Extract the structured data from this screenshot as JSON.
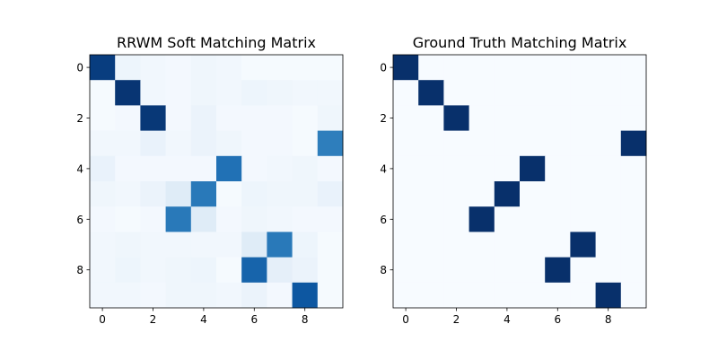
{
  "chart_data": [
    {
      "type": "heatmap",
      "title": "RRWM Soft Matching Matrix",
      "colormap": "Blues",
      "vmin": 0,
      "vmax": 1,
      "xlim": [
        -0.5,
        9.5
      ],
      "ylim": [
        -0.5,
        9.5
      ],
      "xticks": [
        "0",
        "2",
        "4",
        "6",
        "8"
      ],
      "yticks": [
        "0",
        "2",
        "4",
        "6",
        "8"
      ],
      "values": [
        [
          0.95,
          0.05,
          0.03,
          0.02,
          0.04,
          0.03,
          0.01,
          0.01,
          0.01,
          0.01
        ],
        [
          0.01,
          0.98,
          0.03,
          0.02,
          0.04,
          0.03,
          0.05,
          0.04,
          0.03,
          0.03
        ],
        [
          0.01,
          0.02,
          0.97,
          0.02,
          0.06,
          0.02,
          0.02,
          0.02,
          0.01,
          0.04
        ],
        [
          0.03,
          0.03,
          0.07,
          0.03,
          0.06,
          0.04,
          0.02,
          0.02,
          0.01,
          0.7
        ],
        [
          0.07,
          0.02,
          0.02,
          0.02,
          0.02,
          0.75,
          0.02,
          0.03,
          0.04,
          0.02
        ],
        [
          0.04,
          0.03,
          0.06,
          0.12,
          0.72,
          0.01,
          0.05,
          0.04,
          0.04,
          0.07
        ],
        [
          0.02,
          0.01,
          0.02,
          0.72,
          0.12,
          0.02,
          0.04,
          0.03,
          0.02,
          0.02
        ],
        [
          0.03,
          0.04,
          0.03,
          0.03,
          0.03,
          0.03,
          0.12,
          0.72,
          0.05,
          0.01
        ],
        [
          0.03,
          0.05,
          0.03,
          0.04,
          0.05,
          0.01,
          0.8,
          0.09,
          0.06,
          0.01
        ],
        [
          0.03,
          0.03,
          0.02,
          0.04,
          0.04,
          0.03,
          0.06,
          0.02,
          0.85,
          0.01
        ]
      ]
    },
    {
      "type": "heatmap",
      "title": "Ground Truth Matching Matrix",
      "colormap": "Blues",
      "vmin": 0,
      "vmax": 1,
      "xlim": [
        -0.5,
        9.5
      ],
      "ylim": [
        -0.5,
        9.5
      ],
      "xticks": [
        "0",
        "2",
        "4",
        "6",
        "8"
      ],
      "yticks": [
        "0",
        "2",
        "4",
        "6",
        "8"
      ],
      "values": [
        [
          1,
          0,
          0,
          0,
          0,
          0,
          0,
          0,
          0,
          0
        ],
        [
          0,
          1,
          0,
          0,
          0,
          0,
          0,
          0,
          0,
          0
        ],
        [
          0,
          0,
          1,
          0,
          0,
          0,
          0,
          0,
          0,
          0
        ],
        [
          0,
          0,
          0,
          0,
          0,
          0,
          0,
          0,
          0,
          1
        ],
        [
          0,
          0,
          0,
          0,
          0,
          1,
          0,
          0,
          0,
          0
        ],
        [
          0,
          0,
          0,
          0,
          1,
          0,
          0,
          0,
          0,
          0
        ],
        [
          0,
          0,
          0,
          1,
          0,
          0,
          0,
          0,
          0,
          0
        ],
        [
          0,
          0,
          0,
          0,
          0,
          0,
          0,
          1,
          0,
          0
        ],
        [
          0,
          0,
          0,
          0,
          0,
          0,
          1,
          0,
          0,
          0
        ],
        [
          0,
          0,
          0,
          0,
          0,
          0,
          0,
          0,
          1,
          0
        ]
      ]
    }
  ]
}
